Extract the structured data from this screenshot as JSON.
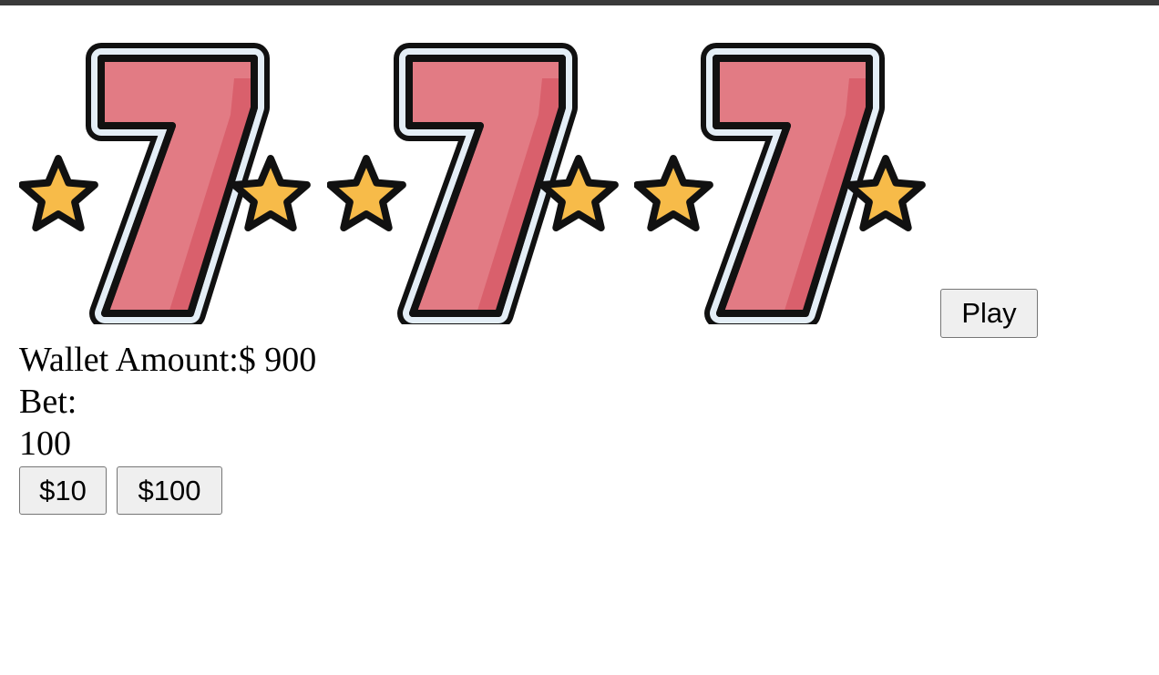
{
  "slots": [
    {
      "symbol": "seven-with-stars-icon"
    },
    {
      "symbol": "seven-with-stars-icon"
    },
    {
      "symbol": "seven-with-stars-icon"
    }
  ],
  "colors": {
    "seven_fill": "#e27b84",
    "seven_shade": "#d9606c",
    "outline": "#111111",
    "outline_gap": "#e4eef6",
    "star_fill": "#f7bb49",
    "star_shade": "#efa83a"
  },
  "play_button": {
    "label": "Play"
  },
  "wallet": {
    "label": "Wallet Amount:",
    "value": "$ 900"
  },
  "bet": {
    "label": "Bet:",
    "value": "100",
    "options": [
      "$10",
      "$100"
    ]
  }
}
